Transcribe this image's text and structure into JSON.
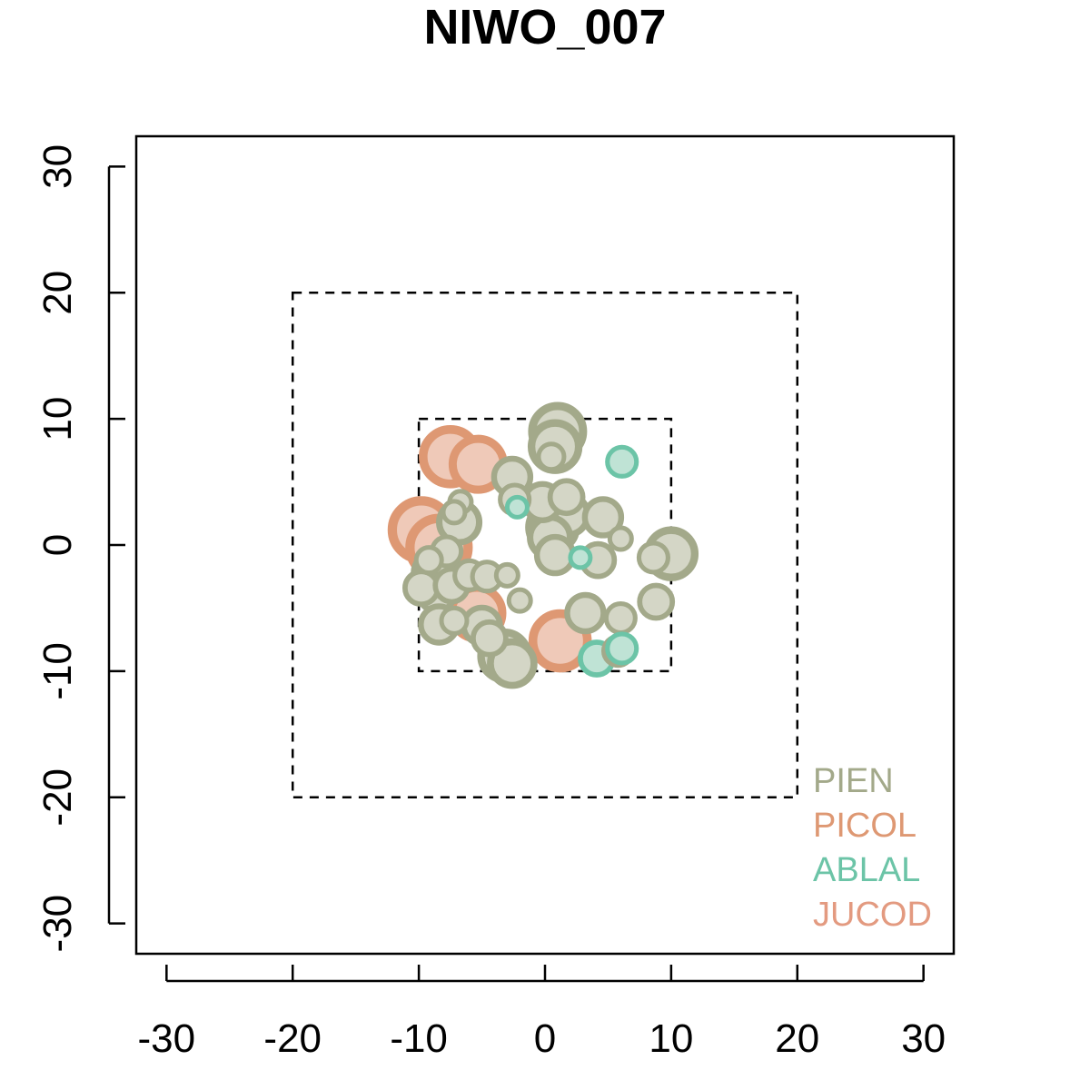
{
  "chart_data": {
    "type": "scatter",
    "title": "NIWO_007",
    "xlabel": "",
    "ylabel": "",
    "xlim": [
      -32.4,
      32.4
    ],
    "ylim": [
      -32.4,
      32.4
    ],
    "x_ticks": [
      -30,
      -20,
      -10,
      0,
      10,
      20,
      30
    ],
    "y_ticks": [
      -30,
      -20,
      -10,
      0,
      10,
      20,
      30
    ],
    "x_tick_labels": [
      "-30",
      "-20",
      "-10",
      "0",
      "10",
      "20",
      "30"
    ],
    "y_tick_labels": [
      "-30",
      "-20",
      "-10",
      "0",
      "10",
      "20",
      "30"
    ],
    "grid": false,
    "plot_boundaries": [
      {
        "xmin": -20,
        "xmax": 20,
        "ymin": -20,
        "ymax": 20,
        "style": "dashed"
      },
      {
        "xmin": -10,
        "xmax": 10,
        "ymin": -10,
        "ymax": 10,
        "style": "dashed"
      }
    ],
    "legend": {
      "placement": "bottom-right",
      "entries": [
        {
          "label": "PIEN",
          "color": "#A3A98A"
        },
        {
          "label": "PICOL",
          "color": "#DE9873"
        },
        {
          "label": "ABLAL",
          "color": "#6CC4A7"
        },
        {
          "label": "JUCOD",
          "color": "#E39A80"
        }
      ]
    },
    "series": [
      {
        "name": "PIEN",
        "color": "#A3A98A",
        "fill": "#D4D6C6",
        "points": [
          {
            "x": 1.0,
            "y": 9.0,
            "size": 2.8
          },
          {
            "x": 0.8,
            "y": 7.8,
            "size": 2.6
          },
          {
            "x": 0.5,
            "y": 7.0,
            "size": 1.4
          },
          {
            "x": -2.6,
            "y": 5.4,
            "size": 2.0
          },
          {
            "x": -2.4,
            "y": 3.6,
            "size": 1.6
          },
          {
            "x": -6.7,
            "y": 3.4,
            "size": 1.2
          },
          {
            "x": -7.2,
            "y": 2.6,
            "size": 1.2
          },
          {
            "x": -6.8,
            "y": 1.8,
            "size": 2.2
          },
          {
            "x": -0.2,
            "y": 3.4,
            "size": 2.0
          },
          {
            "x": 1.7,
            "y": 3.8,
            "size": 1.8
          },
          {
            "x": 1.8,
            "y": 2.4,
            "size": 2.2
          },
          {
            "x": 0.6,
            "y": 1.4,
            "size": 2.6
          },
          {
            "x": 0.4,
            "y": 0.6,
            "size": 2.2
          },
          {
            "x": 4.6,
            "y": 2.2,
            "size": 2.0
          },
          {
            "x": 6.0,
            "y": 0.5,
            "size": 1.2
          },
          {
            "x": 0.8,
            "y": -0.8,
            "size": 2.0
          },
          {
            "x": 4.2,
            "y": -1.2,
            "size": 1.8
          },
          {
            "x": 8.6,
            "y": -1.0,
            "size": 1.6
          },
          {
            "x": 10.0,
            "y": -0.7,
            "size": 2.6
          },
          {
            "x": -7.8,
            "y": -0.5,
            "size": 1.6
          },
          {
            "x": -9.2,
            "y": -1.2,
            "size": 1.4
          },
          {
            "x": -8.8,
            "y": -2.2,
            "size": 2.2
          },
          {
            "x": -9.8,
            "y": -3.4,
            "size": 1.8
          },
          {
            "x": -8.6,
            "y": -3.8,
            "size": 2.0
          },
          {
            "x": -7.4,
            "y": -3.2,
            "size": 1.8
          },
          {
            "x": -6.0,
            "y": -2.4,
            "size": 1.6
          },
          {
            "x": -4.6,
            "y": -2.5,
            "size": 1.6
          },
          {
            "x": -3.0,
            "y": -2.4,
            "size": 1.2
          },
          {
            "x": -2.0,
            "y": -4.4,
            "size": 1.2
          },
          {
            "x": 3.2,
            "y": -5.4,
            "size": 2.0
          },
          {
            "x": 6.0,
            "y": -5.8,
            "size": 1.6
          },
          {
            "x": 8.8,
            "y": -4.5,
            "size": 1.8
          },
          {
            "x": -8.4,
            "y": -6.3,
            "size": 2.0
          },
          {
            "x": -7.2,
            "y": -6.0,
            "size": 1.4
          },
          {
            "x": -5.0,
            "y": -6.4,
            "size": 2.0
          },
          {
            "x": -4.4,
            "y": -7.4,
            "size": 1.8
          },
          {
            "x": -3.2,
            "y": -8.8,
            "size": 2.6
          },
          {
            "x": -2.6,
            "y": -9.4,
            "size": 2.4
          },
          {
            "x": 5.8,
            "y": -8.4,
            "size": 1.6
          }
        ]
      },
      {
        "name": "PICOL",
        "color": "#DE9873",
        "fill": "#EFC9B8",
        "points": [
          {
            "x": -7.5,
            "y": 7.0,
            "size": 3.0
          },
          {
            "x": -5.3,
            "y": 6.4,
            "size": 2.8
          },
          {
            "x": -9.8,
            "y": 1.2,
            "size": 3.2
          },
          {
            "x": -8.4,
            "y": -0.2,
            "size": 3.2
          },
          {
            "x": -5.4,
            "y": -5.4,
            "size": 2.8
          },
          {
            "x": 1.2,
            "y": -7.6,
            "size": 3.0
          }
        ]
      },
      {
        "name": "ABLAL",
        "color": "#6CC4A7",
        "fill": "#BFE3D5",
        "points": [
          {
            "x": 6.1,
            "y": 6.6,
            "size": 1.6
          },
          {
            "x": -2.2,
            "y": 3.0,
            "size": 1.1
          },
          {
            "x": 2.8,
            "y": -1.0,
            "size": 1.1
          },
          {
            "x": 4.1,
            "y": -9.0,
            "size": 1.8
          },
          {
            "x": 6.1,
            "y": -8.2,
            "size": 1.6
          }
        ]
      },
      {
        "name": "JUCOD",
        "color": "#E39A80",
        "fill": "#F2CABB",
        "points": []
      }
    ]
  }
}
